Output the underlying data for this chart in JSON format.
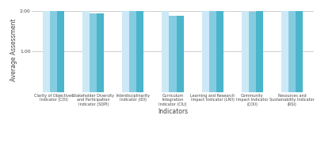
{
  "categories": [
    "Clarity of Objectives\nIndicator (COI)",
    "Stakeholder Diversity\nand Participation\nIndicator (SDPI)",
    "Interdisciplinarity\nIndicator (IDI)",
    "Curriculum\nIntegration\nIndicator (CIU)",
    "Learning and Research\nImpact Indicator (LRII)",
    "Community\nImpact Indicator\n(COII)",
    "Resources and\nSustainability Indicator\n(RSI)"
  ],
  "series": {
    "Relevance": [
      2.0,
      2.0,
      2.0,
      2.0,
      2.0,
      2.0,
      2.0
    ],
    "Clarity": [
      2.0,
      1.93,
      2.0,
      1.87,
      2.0,
      1.97,
      2.0
    ],
    "Applicability": [
      2.0,
      1.93,
      2.0,
      1.87,
      2.0,
      2.0,
      2.0
    ]
  },
  "colors": {
    "Relevance": "#cce9f5",
    "Clarity": "#85cce0",
    "Applicability": "#4ab5cb"
  },
  "ylim": [
    0,
    2.0
  ],
  "yticks": [
    1.0,
    2.0
  ],
  "ylabel": "Average Assessment",
  "xlabel": "Indicators",
  "bar_width": 0.18,
  "background_color": "#ffffff",
  "grid_color": "#bbbbbb",
  "label_fontsize": 3.5,
  "axis_fontsize": 5.5,
  "tick_fontsize": 4.5,
  "legend_fontsize": 5.0
}
